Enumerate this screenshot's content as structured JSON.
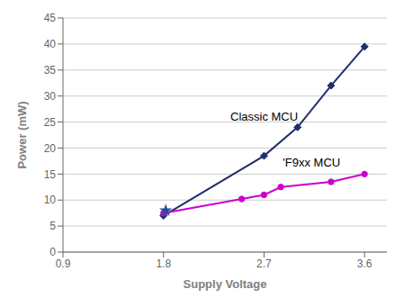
{
  "chart_data": {
    "type": "line",
    "xlabel": "Supply Voltage",
    "ylabel": "Power (mW)",
    "xlim": [
      0.9,
      3.8
    ],
    "xticks": [
      0.9,
      1.8,
      2.7,
      3.6
    ],
    "ylim": [
      0,
      45
    ],
    "yticks": [
      0,
      5,
      10,
      15,
      20,
      25,
      30,
      35,
      40,
      45
    ],
    "grid": "y",
    "series": [
      {
        "type": "line",
        "color": "#1f2f6e",
        "marker": "diamond",
        "x": [
          1.8,
          2.7,
          3.0,
          3.3,
          3.6
        ],
        "values": [
          7.0,
          18.5,
          24.0,
          32.0,
          39.5
        ]
      },
      {
        "type": "line",
        "color": "#cc00cc",
        "marker": "circle",
        "x": [
          1.8,
          2.5,
          2.7,
          2.85,
          3.3,
          3.6
        ],
        "values": [
          7.5,
          10.2,
          11.0,
          12.5,
          13.5,
          15.0
        ]
      },
      {
        "type": "scatter",
        "color": "#1f4fa0",
        "marker": "star",
        "x": [
          1.82
        ],
        "values": [
          8.0
        ]
      }
    ],
    "annotations": [
      {
        "text": "Classic MCU",
        "x": 2.35,
        "y": 26.0
      },
      {
        "text": "'F9xx MCU",
        "x": 2.82,
        "y": 17.2
      }
    ]
  }
}
